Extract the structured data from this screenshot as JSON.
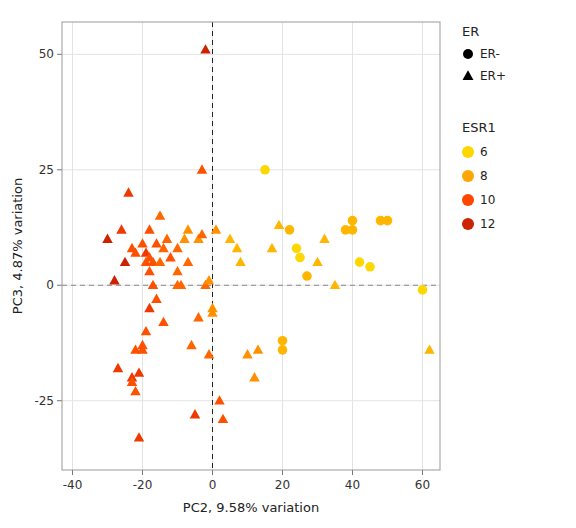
{
  "chart_data": {
    "type": "scatter",
    "xlabel": "PC2, 9.58% variation",
    "ylabel": "PC3, 4.87% variation",
    "xlim": [
      -43,
      65
    ],
    "ylim": [
      -40,
      57
    ],
    "xticks": [
      -40,
      -20,
      0,
      20,
      40,
      60
    ],
    "yticks": [
      -25,
      0,
      25,
      50
    ],
    "grid": true,
    "legend": "right",
    "shape_legend_title": "ER",
    "series": [
      {
        "name": "ER-",
        "marker": "circle",
        "x": [
          15,
          20,
          20,
          22,
          24,
          25,
          27,
          38,
          40,
          40,
          42,
          45,
          48,
          50,
          60
        ],
        "values": [
          25,
          -12,
          -14,
          12,
          8,
          6,
          2,
          12,
          14,
          12,
          5,
          4,
          14,
          14,
          -1
        ],
        "esr1": [
          6,
          7,
          7,
          7,
          6,
          6,
          7,
          7,
          7,
          7,
          6,
          6,
          7,
          7,
          6
        ]
      },
      {
        "name": "ER+",
        "marker": "triangle",
        "x": [
          -30,
          -28,
          -27,
          -26,
          -25,
          -24,
          -23,
          -23,
          -23,
          -22,
          -22,
          -22,
          -21,
          -21,
          -20,
          -20,
          -20,
          -19,
          -19,
          -19,
          -18,
          -18,
          -18,
          -18,
          -17,
          -17,
          -16,
          -16,
          -15,
          -15,
          -14,
          -14,
          -13,
          -12,
          -10,
          -10,
          -10,
          -9,
          -8,
          -7,
          -7,
          -6,
          -5,
          -4,
          -4,
          -3,
          -3,
          -2,
          -2,
          -1,
          -1,
          0,
          0,
          1,
          2,
          3,
          5,
          7,
          8,
          10,
          12,
          13,
          17,
          19,
          30,
          32,
          35,
          62
        ],
        "values": [
          10,
          1,
          -18,
          12,
          5,
          20,
          -20,
          -21,
          8,
          -23,
          7,
          -14,
          -19,
          -33,
          9,
          -14,
          -13,
          7,
          5,
          -10,
          12,
          6,
          3,
          -5,
          5,
          0,
          9,
          -3,
          5,
          15,
          8,
          -8,
          10,
          6,
          3,
          8,
          0,
          0,
          10,
          12,
          5,
          -13,
          -28,
          -7,
          10,
          25,
          11,
          51,
          0,
          1,
          -15,
          -6,
          -5,
          12,
          -25,
          -29,
          10,
          8,
          5,
          -15,
          -20,
          -14,
          8,
          13,
          5,
          10,
          0,
          -14
        ],
        "esr1": [
          12,
          12,
          11,
          11,
          12,
          11,
          11,
          10,
          10,
          10,
          10,
          10,
          11,
          11,
          10,
          10,
          10,
          11,
          10,
          10,
          10,
          10,
          10,
          11,
          10,
          10,
          10,
          10,
          9,
          9,
          9,
          10,
          9,
          10,
          9,
          9,
          9,
          9,
          8,
          8,
          9,
          9,
          11,
          9,
          8,
          10,
          9,
          12,
          9,
          8,
          9,
          8,
          8,
          8,
          10,
          10,
          7,
          7,
          7,
          8,
          8,
          8,
          7,
          7,
          7,
          7,
          7,
          7
        ]
      }
    ],
    "color_scale": {
      "colors": [
        "#FFD700",
        "#FFA500",
        "#FF6600",
        "#FF4500",
        "#CC2200"
      ],
      "min": 6,
      "max": 12
    },
    "color_legend": {
      "title": "ESR1",
      "values": [
        6,
        8,
        10,
        12
      ],
      "colors": [
        "#FFD700",
        "#FFA500",
        "#FF4500",
        "#CC2200"
      ]
    },
    "reference_lines": [
      {
        "axis": "y",
        "value": 0
      },
      {
        "axis": "x",
        "value": 0
      }
    ]
  }
}
